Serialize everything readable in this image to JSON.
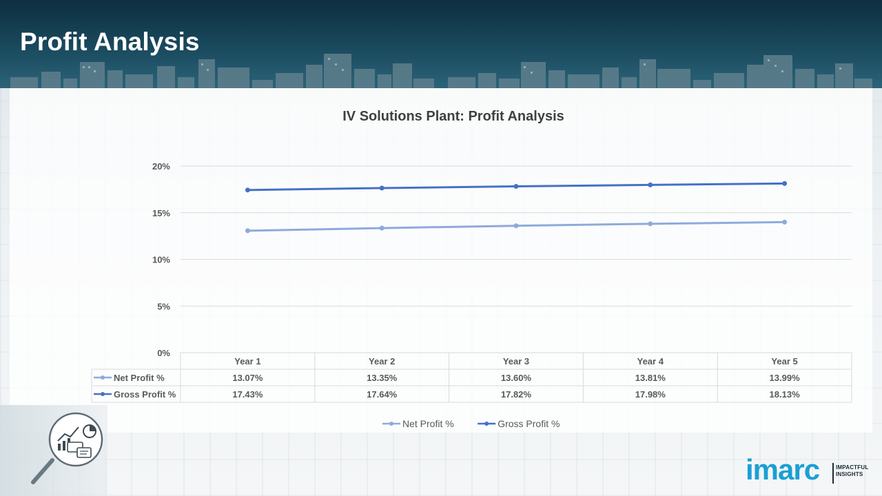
{
  "page": {
    "title": "Profit Analysis",
    "brand": {
      "logo_text": "imarc",
      "tagline_line1": "IMPACTFUL",
      "tagline_line2": "INSIGHTS"
    }
  },
  "colors": {
    "net_profit": "#8eaadb",
    "gross_profit": "#4472c4",
    "header_bg": "#0d2f3f",
    "brand_blue": "#1a9fd6"
  },
  "icons": [
    "analysis-magnifier-icon",
    "imarc-logo"
  ],
  "chart_data": {
    "type": "line",
    "title": "IV Solutions Plant: Profit Analysis",
    "categories": [
      "Year 1",
      "Year 2",
      "Year 3",
      "Year 4",
      "Year 5"
    ],
    "series": [
      {
        "name": "Net Profit %",
        "values": [
          13.07,
          13.35,
          13.6,
          13.81,
          13.99
        ],
        "labels": [
          "13.07%",
          "13.35%",
          "13.60%",
          "13.81%",
          "13.99%"
        ]
      },
      {
        "name": "Gross Profit %",
        "values": [
          17.43,
          17.64,
          17.82,
          17.98,
          18.13
        ],
        "labels": [
          "17.43%",
          "17.64%",
          "17.82%",
          "17.98%",
          "18.13%"
        ]
      }
    ],
    "y_ticks": [
      "0%",
      "5%",
      "10%",
      "15%",
      "20%"
    ],
    "ylim": [
      0,
      20
    ],
    "grid": true,
    "legend": "bottom",
    "data_table": true
  }
}
